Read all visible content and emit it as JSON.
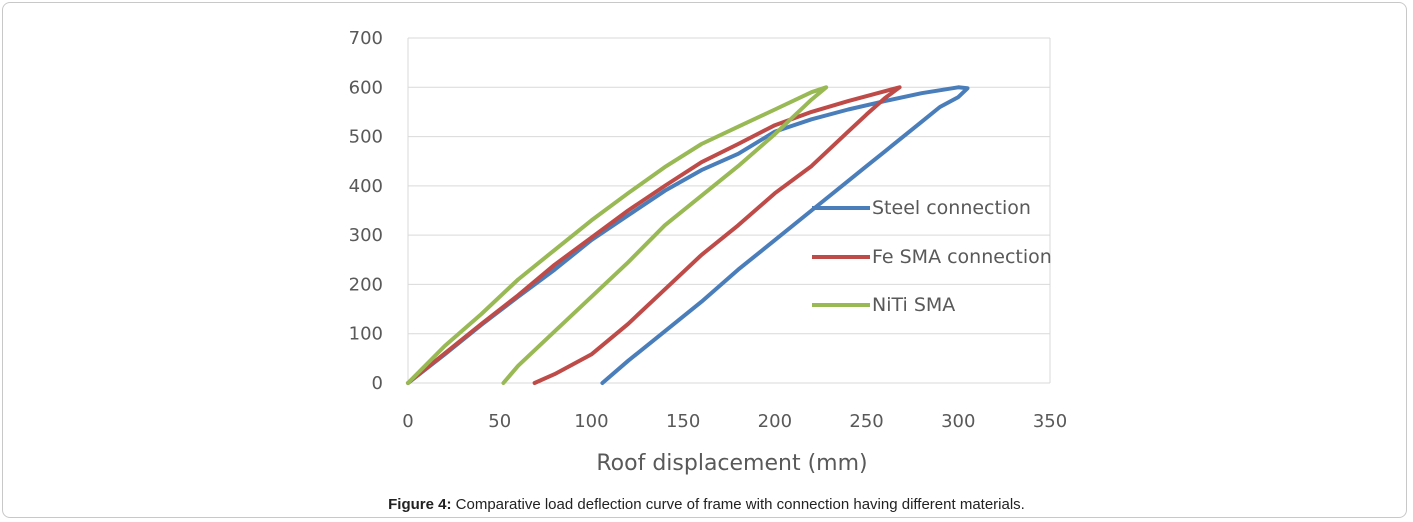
{
  "caption": {
    "label": "Figure 4:",
    "text": " Comparative load deflection curve of frame with connection having different materials."
  },
  "chart_data": {
    "type": "line",
    "title": "",
    "xlabel": "Roof displacement (mm)",
    "ylabel": "",
    "xlim": [
      0,
      350
    ],
    "ylim": [
      0,
      700
    ],
    "xticks": [
      0,
      50,
      100,
      150,
      200,
      250,
      300,
      350
    ],
    "yticks": [
      0,
      100,
      200,
      300,
      400,
      500,
      600,
      700
    ],
    "grid": "horizontal",
    "legend_position": "right",
    "series": [
      {
        "name": "Steel connection",
        "color": "#4a7ebb",
        "x": [
          0,
          20,
          40,
          60,
          80,
          100,
          120,
          140,
          160,
          180,
          200,
          220,
          240,
          260,
          280,
          300,
          305,
          300,
          290,
          280,
          270,
          260,
          250,
          240,
          220,
          200,
          180,
          160,
          140,
          120,
          106
        ],
        "y": [
          0,
          58,
          118,
          175,
          230,
          290,
          340,
          390,
          432,
          465,
          510,
          535,
          555,
          572,
          588,
          600,
          598,
          580,
          560,
          530,
          500,
          470,
          440,
          410,
          350,
          290,
          230,
          165,
          105,
          45,
          0
        ]
      },
      {
        "name": "Fe SMA connection",
        "color": "#be4b48",
        "x": [
          0,
          20,
          40,
          60,
          80,
          100,
          120,
          140,
          160,
          180,
          200,
          220,
          240,
          260,
          268,
          260,
          250,
          240,
          220,
          200,
          180,
          160,
          140,
          120,
          100,
          80,
          69
        ],
        "y": [
          0,
          60,
          120,
          178,
          240,
          295,
          350,
          400,
          448,
          485,
          523,
          550,
          572,
          592,
          600,
          578,
          545,
          510,
          440,
          385,
          320,
          260,
          190,
          120,
          58,
          18,
          0
        ]
      },
      {
        "name": "NiTi SMA",
        "color": "#98b954",
        "x": [
          0,
          20,
          40,
          60,
          80,
          100,
          120,
          140,
          160,
          180,
          200,
          220,
          228,
          220,
          200,
          180,
          160,
          140,
          120,
          100,
          80,
          60,
          52
        ],
        "y": [
          0,
          75,
          140,
          210,
          270,
          330,
          385,
          438,
          485,
          520,
          555,
          590,
          600,
          575,
          505,
          440,
          380,
          320,
          245,
          175,
          105,
          35,
          0
        ]
      }
    ]
  }
}
